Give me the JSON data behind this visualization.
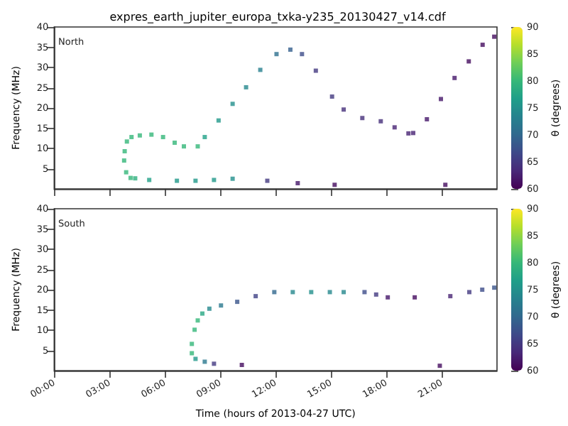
{
  "chart_data": [
    {
      "type": "scatter",
      "title": "expres_earth_jupiter_europa_txka-y235_20130427_v14.cdf",
      "ylabel": "Frequency (MHz)",
      "annotations": [
        "North"
      ],
      "marker": "square",
      "tick_labels": "y",
      "clabel": "θ (degrees)",
      "clim": [
        60,
        90
      ],
      "cticks": [
        60,
        65,
        70,
        75,
        80,
        85,
        90
      ],
      "xlim": [
        0,
        24
      ],
      "xticks": [
        0,
        3,
        6,
        9,
        12,
        15,
        18,
        21
      ],
      "ylim": [
        0,
        40
      ],
      "yticks": [
        5,
        10,
        15,
        20,
        25,
        30,
        35,
        40
      ],
      "x": [
        4.14,
        3.9,
        3.79,
        3.82,
        3.94,
        4.19,
        4.64,
        5.27,
        5.9,
        6.53,
        7.03,
        7.78,
        8.16,
        8.91,
        9.67,
        10.4,
        11.17,
        12.05,
        12.8,
        13.43,
        14.18,
        15.06,
        15.69,
        16.7,
        17.7,
        18.45,
        19.2,
        19.46,
        20.2,
        20.96,
        21.7,
        22.47,
        23.22,
        23.85,
        4.39,
        5.15,
        6.65,
        7.66,
        8.66,
        9.67,
        11.55,
        13.2,
        15.2,
        21.2
      ],
      "values": [
        2.7,
        4.1,
        7.0,
        9.3,
        11.7,
        12.8,
        13.2,
        13.4,
        12.8,
        11.4,
        10.5,
        10.5,
        12.8,
        16.9,
        21.0,
        25.1,
        29.4,
        33.3,
        34.4,
        33.3,
        29.2,
        22.8,
        19.6,
        17.5,
        16.7,
        15.2,
        13.7,
        13.8,
        17.2,
        22.2,
        27.4,
        31.5,
        35.6,
        37.6,
        2.6,
        2.2,
        2.0,
        2.0,
        2.2,
        2.5,
        2.0,
        1.4,
        1.0,
        1.0
      ],
      "cvalues": [
        80,
        80,
        80,
        80,
        80,
        80,
        80,
        80,
        80,
        80,
        80,
        80,
        77,
        76,
        75,
        74,
        73,
        71,
        69,
        67,
        65,
        65,
        64,
        64,
        64,
        63,
        63,
        63,
        62,
        62,
        62,
        61,
        61,
        61,
        79,
        77,
        76,
        76,
        76,
        75,
        65,
        62,
        61,
        61
      ]
    },
    {
      "type": "scatter",
      "ylabel": "Frequency (MHz)",
      "xlabel": "Time (hours of 2013-04-27 UTC)",
      "annotations": [
        "South"
      ],
      "marker": "square",
      "clabel": "θ (degrees)",
      "clim": [
        60,
        90
      ],
      "cticks": [
        60,
        65,
        70,
        75,
        80,
        85,
        90
      ],
      "xlim": [
        0,
        24
      ],
      "xticks": [
        {
          "value": 0,
          "label": "00:00"
        },
        {
          "value": 3,
          "label": "03:00"
        },
        {
          "value": 6,
          "label": "06:00"
        },
        {
          "value": 9,
          "label": "09:00"
        },
        {
          "value": 12,
          "label": "12:00"
        },
        {
          "value": 15,
          "label": "15:00"
        },
        {
          "value": 18,
          "label": "18:00"
        },
        {
          "value": 21,
          "label": "21:00"
        }
      ],
      "ylim": [
        0,
        40
      ],
      "yticks": [
        5,
        10,
        15,
        20,
        25,
        30,
        35,
        40
      ],
      "x": [
        10.17,
        8.66,
        8.16,
        7.66,
        7.46,
        7.46,
        7.61,
        7.78,
        8.03,
        8.41,
        9.04,
        9.92,
        10.92,
        11.93,
        12.93,
        13.93,
        14.94,
        15.69,
        16.82,
        17.45,
        18.08,
        19.54,
        21.47,
        22.5,
        23.2,
        23.85,
        20.9
      ],
      "values": [
        1.4,
        1.7,
        2.2,
        2.9,
        4.3,
        6.6,
        10.1,
        12.4,
        14.1,
        15.3,
        16.1,
        17.0,
        18.4,
        19.4,
        19.4,
        19.4,
        19.4,
        19.4,
        19.4,
        18.8,
        18.1,
        18.1,
        18.4,
        19.4,
        20.0,
        20.5,
        1.2
      ],
      "cvalues": [
        61,
        65,
        72,
        76,
        80,
        80,
        80,
        80,
        78,
        74,
        72,
        68,
        66,
        70,
        74,
        75,
        74,
        74,
        67,
        65,
        62,
        61,
        63,
        65,
        67,
        68,
        61
      ]
    }
  ]
}
